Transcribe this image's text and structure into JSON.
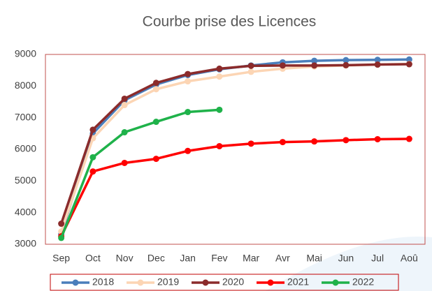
{
  "chart_data": {
    "type": "line",
    "title": "Courbe prise des Licences",
    "categories": [
      "Sep",
      "Oct",
      "Nov",
      "Dec",
      "Jan",
      "Fev",
      "Mar",
      "Avr",
      "Mai",
      "Jun",
      "Jul",
      "Aoû"
    ],
    "series": [
      {
        "name": "2018",
        "color": "#4a7ebb",
        "values": [
          3320,
          6500,
          7550,
          8050,
          8350,
          8530,
          8650,
          8750,
          8800,
          8820,
          8830,
          8840
        ]
      },
      {
        "name": "2019",
        "color": "#fcd5b4",
        "values": [
          3400,
          6350,
          7400,
          7900,
          8150,
          8300,
          8450,
          8550,
          8620,
          8650,
          8680,
          8700
        ]
      },
      {
        "name": "2020",
        "color": "#8b2b2b",
        "values": [
          3650,
          6620,
          7600,
          8100,
          8380,
          8550,
          8640,
          8650,
          8650,
          8660,
          8680,
          8690
        ]
      },
      {
        "name": "2021",
        "color": "#ff0000",
        "values": [
          3250,
          5300,
          5570,
          5700,
          5950,
          6100,
          6180,
          6230,
          6250,
          6290,
          6320,
          6330
        ]
      },
      {
        "name": "2022",
        "color": "#1fb24a",
        "values": [
          3200,
          5750,
          6540,
          6870,
          7180,
          7250,
          null,
          null,
          null,
          null,
          null,
          null
        ]
      }
    ],
    "ylim": [
      3000,
      9000
    ],
    "yticks": [
      3000,
      4000,
      5000,
      6000,
      7000,
      8000,
      9000
    ],
    "grid": false,
    "legend": "bottom"
  }
}
